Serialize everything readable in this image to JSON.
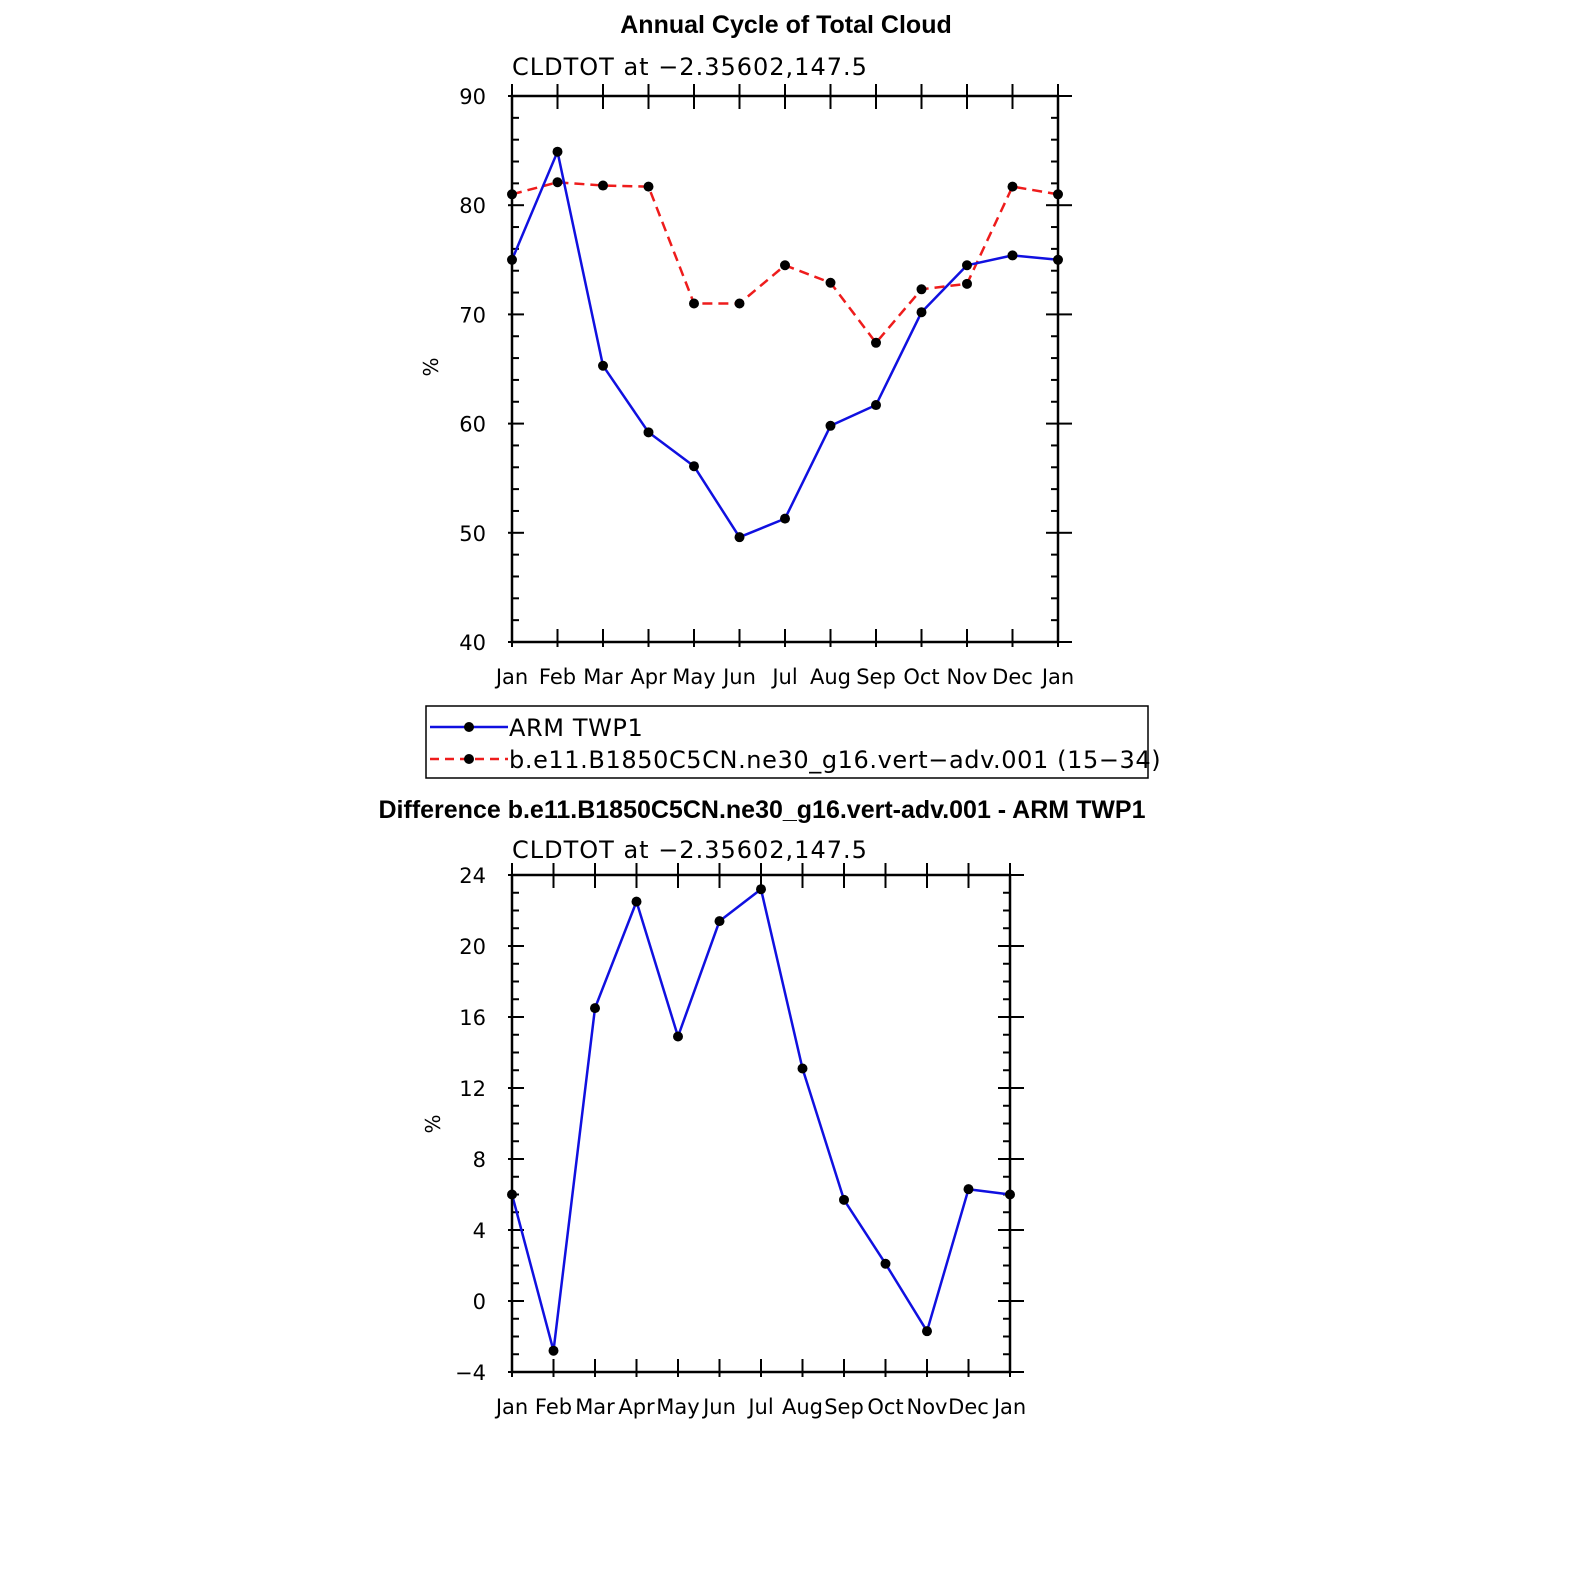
{
  "chart_data": [
    {
      "type": "line",
      "title": "Annual Cycle of Total Cloud",
      "subtitle": "CLDTOT at −2.35602,147.5",
      "ylabel": "%",
      "categories": [
        "Jan",
        "Feb",
        "Mar",
        "Apr",
        "May",
        "Jun",
        "Jul",
        "Aug",
        "Sep",
        "Oct",
        "Nov",
        "Dec",
        "Jan"
      ],
      "yticks": [
        "90",
        "80",
        "70",
        "60",
        "50",
        "40"
      ],
      "ylim": [
        40,
        90
      ],
      "grid": false,
      "legend_position": "below",
      "series": [
        {
          "name": "ARM TWP1",
          "color": "#1010e0",
          "style": "solid",
          "values": [
            75.0,
            84.9,
            65.3,
            59.2,
            56.1,
            49.6,
            51.3,
            59.8,
            61.7,
            70.2,
            74.5,
            75.4,
            75.0
          ]
        },
        {
          "name": "b.e11.B1850C5CN.ne30_g16.vert−adv.001 (15−34)",
          "color": "#ee1c1c",
          "style": "dashed",
          "values": [
            81.0,
            82.1,
            81.8,
            81.7,
            71.0,
            71.0,
            74.5,
            72.9,
            67.4,
            72.3,
            72.8,
            81.7,
            81.0
          ]
        }
      ]
    },
    {
      "type": "line",
      "title": "Difference b.e11.B1850C5CN.ne30_g16.vert-adv.001 - ARM TWP1",
      "subtitle": "CLDTOT at −2.35602,147.5",
      "ylabel": "%",
      "categories": [
        "Jan",
        "Feb",
        "Mar",
        "Apr",
        "May",
        "Jun",
        "Jul",
        "Aug",
        "Sep",
        "Oct",
        "Nov",
        "Dec",
        "Jan"
      ],
      "yticks": [
        "24",
        "20",
        "16",
        "12",
        "8",
        "4",
        "0",
        "−4"
      ],
      "ylim": [
        -4,
        24
      ],
      "grid": false,
      "series": [
        {
          "color": "#1010e0",
          "style": "solid",
          "values": [
            6.0,
            -2.8,
            16.5,
            22.5,
            14.9,
            21.4,
            23.2,
            13.1,
            5.7,
            2.1,
            -1.7,
            6.3,
            6.0
          ]
        }
      ]
    }
  ]
}
